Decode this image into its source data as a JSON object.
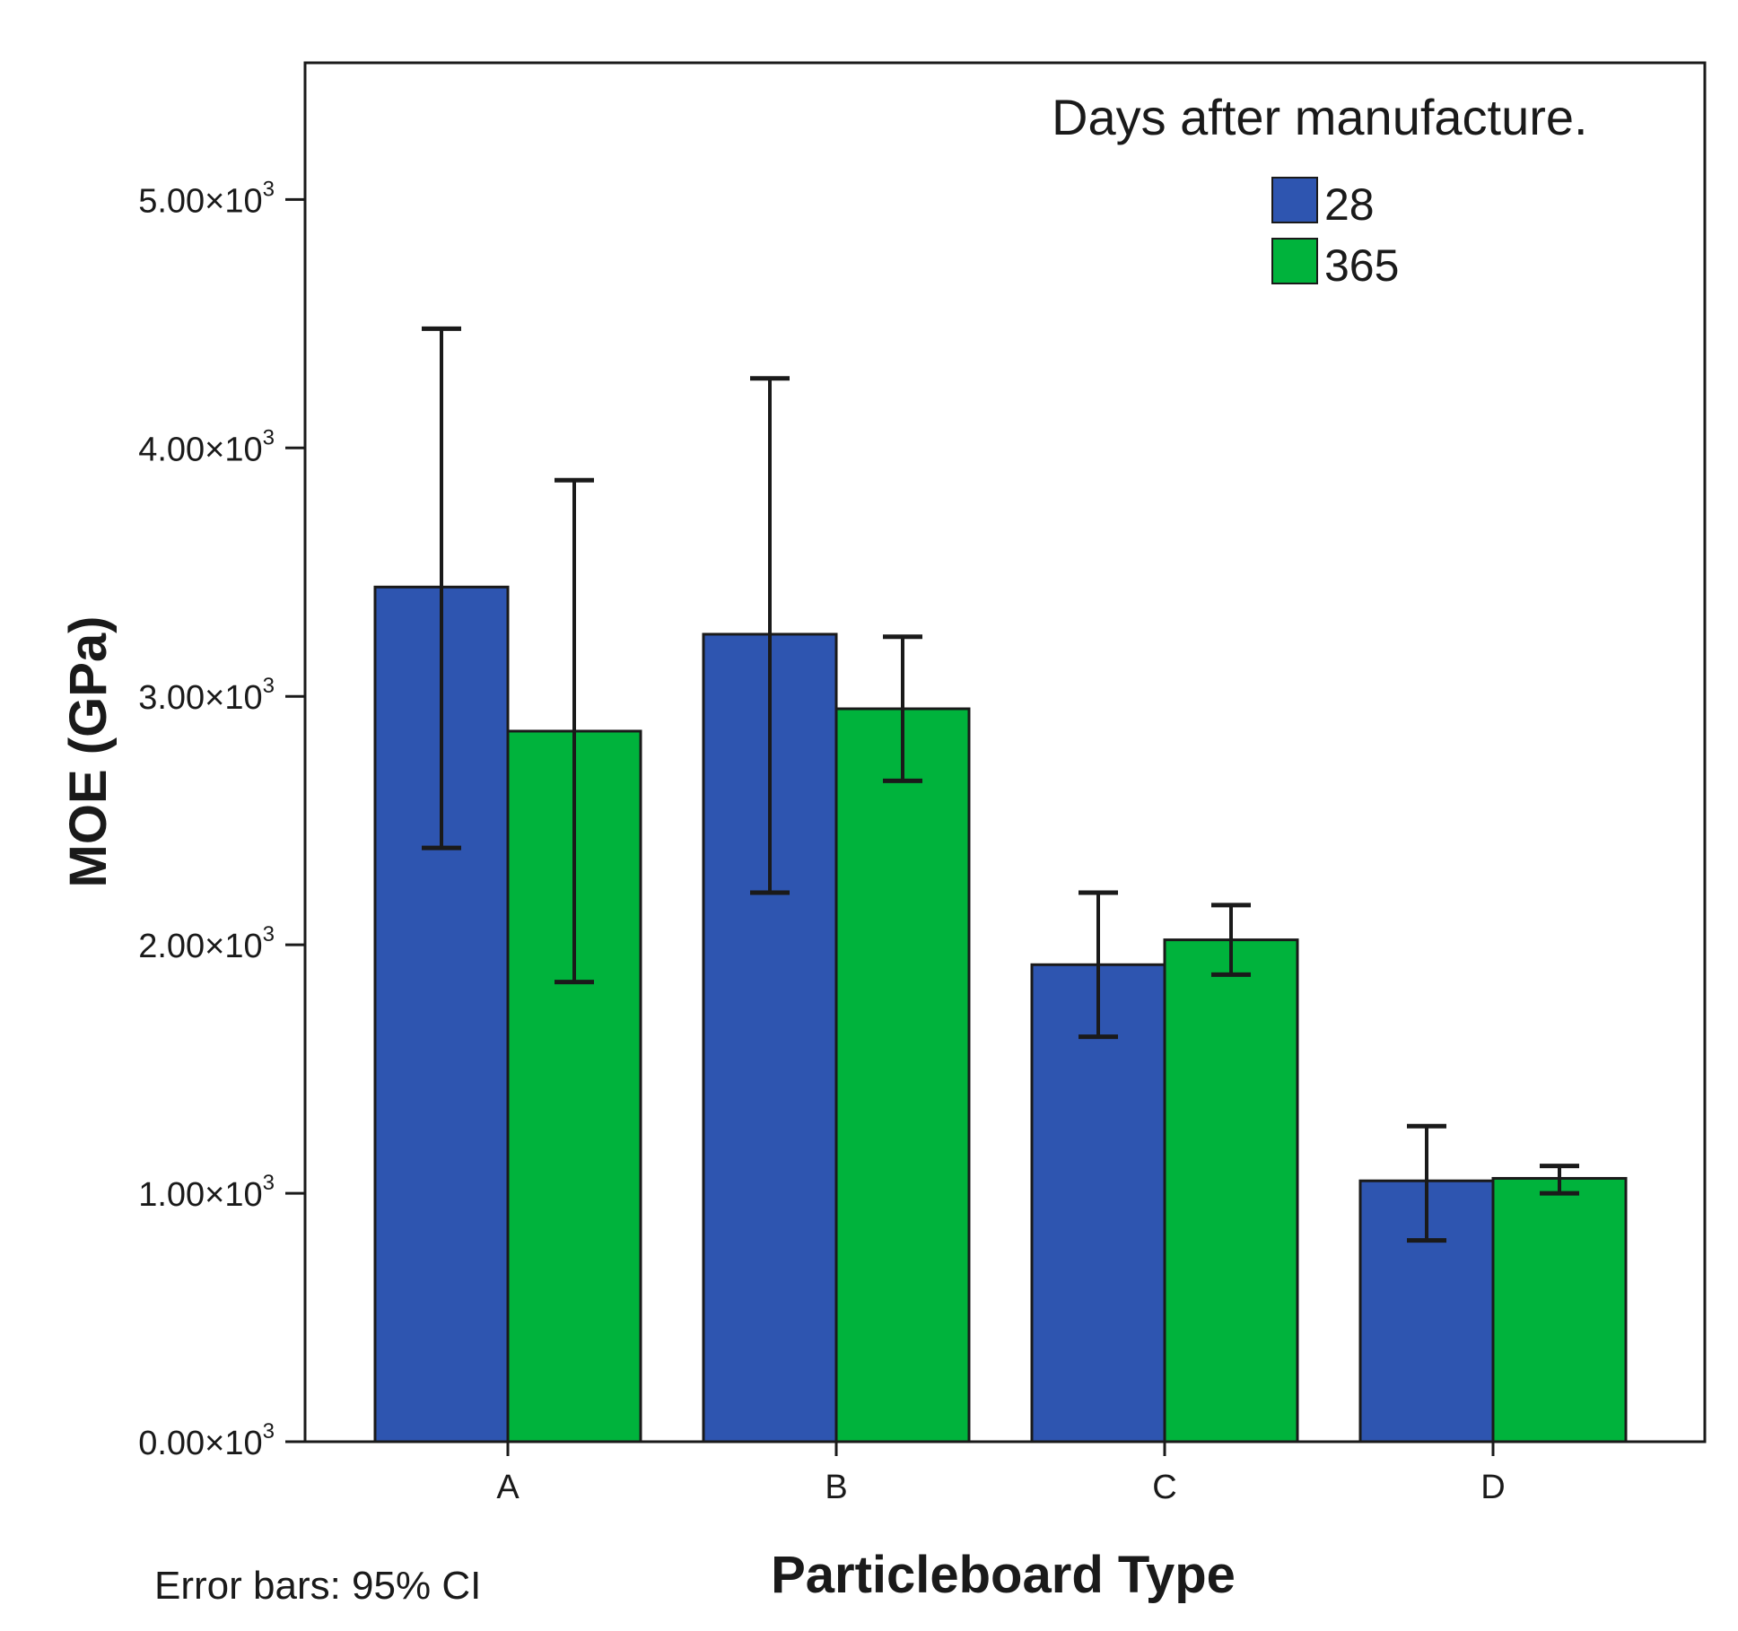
{
  "chart_data": {
    "type": "bar",
    "title": "",
    "xlabel": "Particleboard Type",
    "ylabel": "MOE (GPa)",
    "categories": [
      "A",
      "B",
      "C",
      "D"
    ],
    "ylim": [
      0,
      5550
    ],
    "yticks": [
      {
        "value": 0,
        "mantissa": "0.00",
        "times": "×10",
        "exp": "3"
      },
      {
        "value": 1000,
        "mantissa": "1.00",
        "times": "×10",
        "exp": "3"
      },
      {
        "value": 2000,
        "mantissa": "2.00",
        "times": "×10",
        "exp": "3"
      },
      {
        "value": 3000,
        "mantissa": "3.00",
        "times": "×10",
        "exp": "3"
      },
      {
        "value": 4000,
        "mantissa": "4.00",
        "times": "×10",
        "exp": "3"
      },
      {
        "value": 5000,
        "mantissa": "5.00",
        "times": "×10",
        "exp": "3"
      }
    ],
    "legend_title": "Days after manufacture.",
    "legend_position": "top-right",
    "series": [
      {
        "name": "28",
        "color": "#2e55b0",
        "values": [
          3440,
          3250,
          1920,
          1050
        ],
        "ci_low": [
          2390,
          2210,
          1630,
          810
        ],
        "ci_high": [
          4480,
          4280,
          2210,
          1270
        ]
      },
      {
        "name": "365",
        "color": "#00b33c",
        "values": [
          2860,
          2950,
          2020,
          1060
        ],
        "ci_low": [
          1850,
          2660,
          1880,
          1000
        ],
        "ci_high": [
          3870,
          3240,
          2160,
          1110
        ]
      }
    ],
    "note": "Error bars: 95% CI"
  }
}
